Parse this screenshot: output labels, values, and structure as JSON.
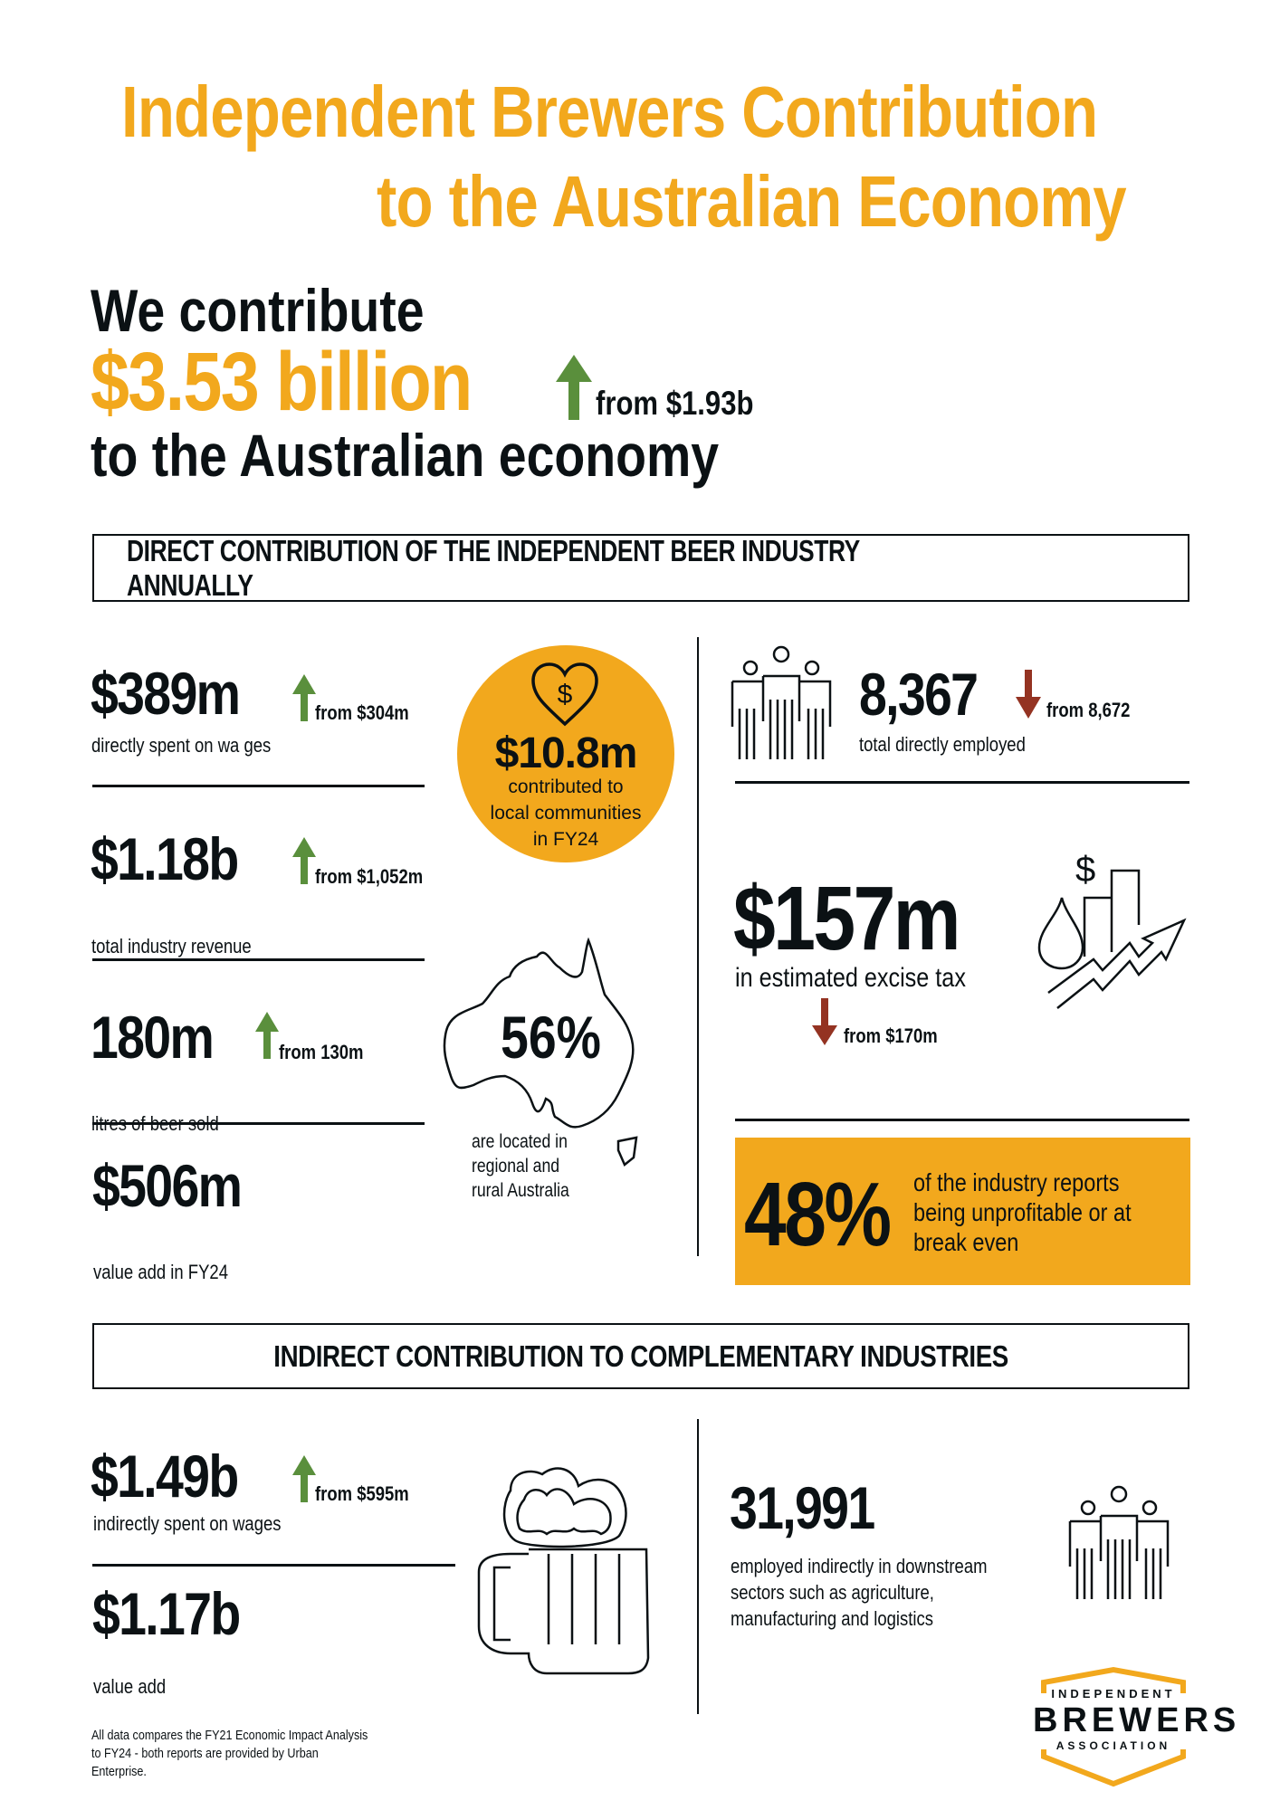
{
  "title": {
    "line1": "Independent Brewers Contribution",
    "line2": "to the Australian Economy"
  },
  "hero": {
    "prefix": "We contribute",
    "amount": "$3.53 billion",
    "change": "from $1.93b",
    "direction": "up",
    "suffix": "to the Australian economy"
  },
  "colors": {
    "accent": "#f2a81d",
    "up": "#5a8f3c",
    "down": "#943322",
    "text": "#0b1114"
  },
  "direct": {
    "heading": "DIRECT CONTRIBUTION OF THE INDEPENDENT BEER INDUSTRY ANNUALLY",
    "wages": {
      "value": "$389m",
      "change": "from $304m",
      "direction": "up",
      "label": "directly spent on wa ges"
    },
    "revenue": {
      "value": "$1.18b",
      "change": "from $1,052m",
      "direction": "up",
      "label": "total industry revenue"
    },
    "litres": {
      "value": "180m",
      "change": "from 130m",
      "direction": "up",
      "label": "litres of beer sold"
    },
    "value_add": {
      "value": "$506m",
      "label": "value add in FY24"
    },
    "community": {
      "value": "$10.8m",
      "label1": "contributed to",
      "label2": "local communities",
      "label3": "in FY24",
      "icon": "heart-dollar-icon"
    },
    "regional": {
      "value": "56%",
      "label1": "are located in",
      "label2": "regional and",
      "label3": "rural Australia",
      "icon": "australia-map-icon"
    },
    "employed": {
      "value": "8,367",
      "change": "from 8,672",
      "direction": "down",
      "label": "total directly employed",
      "icon": "people-icon"
    },
    "excise": {
      "value": "$157m",
      "label": "in estimated excise tax",
      "change": "from $170m",
      "direction": "down",
      "icon": "tax-chart-icon"
    },
    "unprofitable": {
      "value": "48%",
      "label1": "of the industry reports",
      "label2": "being unprofitable or at",
      "label3": "break even"
    }
  },
  "indirect": {
    "heading": "INDIRECT CONTRIBUTION TO COMPLEMENTARY INDUSTRIES",
    "wages": {
      "value": "$1.49b",
      "change": "from $595m",
      "direction": "up",
      "label": "indirectly spent on wages"
    },
    "value_add": {
      "value": "$1.17b",
      "label": "value add"
    },
    "employed": {
      "value": "31,991",
      "label1": "employed indirectly in downstream",
      "label2": "sectors such as agriculture,",
      "label3": "manufacturing and logistics",
      "icon": "people-icon"
    },
    "beer_icon": "beer-mug-icon"
  },
  "footnote": {
    "line1": "All data compares the FY21 Economic Impact Analysis",
    "line2": "to FY24 - both reports are provided by Urban",
    "line3": "Enterprise."
  },
  "logo": {
    "line1": "INDEPENDENT",
    "line2": "BREWERS",
    "line3": "ASSOCIATION"
  }
}
